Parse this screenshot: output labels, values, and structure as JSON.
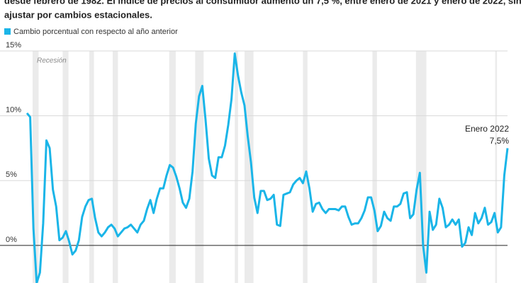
{
  "chart_data": {
    "type": "line",
    "subtitle": [
      "desde febrero de 1982. El índice de precios al consumidor aumentó un 7,5 %, entre enero de 2021 y enero de 2022, sin",
      "ajustar por cambios estacionales."
    ],
    "recession_label": "Recesión",
    "annotations": [
      "Enero 2022",
      "7,5%"
    ],
    "ylim": [
      -2.9,
      15
    ],
    "yticks": [
      {
        "value": 0,
        "label": "0%"
      },
      {
        "value": 5,
        "label": "5%"
      },
      {
        "value": 10,
        "label": "10%"
      },
      {
        "value": 15,
        "label": "15%"
      }
    ],
    "grid": true,
    "series": [
      {
        "name": "Cambio porcentual con respecto al año anterior",
        "color": "#1ab5e8",
        "values": [
          10.2,
          9.9,
          1.3,
          -2.9,
          -2.1,
          1.7,
          8.1,
          7.5,
          4.3,
          3.0,
          0.4,
          0.6,
          1.1,
          0.3,
          -0.7,
          -0.4,
          0.4,
          2.2,
          3.0,
          3.5,
          3.6,
          2.1,
          1.0,
          0.7,
          1.0,
          1.4,
          1.6,
          1.3,
          0.7,
          1.0,
          1.3,
          1.4,
          1.6,
          1.3,
          1.0,
          1.6,
          1.9,
          2.8,
          3.5,
          2.5,
          3.6,
          4.4,
          4.4,
          5.4,
          6.2,
          6.0,
          5.3,
          4.4,
          3.3,
          2.9,
          3.6,
          5.7,
          9.4,
          11.5,
          12.3,
          9.7,
          6.7,
          5.4,
          5.2,
          6.8,
          6.8,
          7.7,
          9.3,
          11.3,
          14.8,
          13.1,
          11.8,
          10.8,
          8.4,
          6.4,
          3.7,
          2.5,
          4.2,
          4.2,
          3.5,
          3.6,
          3.9,
          1.6,
          1.5,
          3.9,
          4.0,
          4.1,
          4.7,
          5.0,
          5.2,
          4.8,
          5.7,
          4.4,
          2.6,
          3.2,
          3.3,
          2.8,
          2.5,
          2.8,
          2.8,
          2.8,
          2.7,
          3.0,
          3.0,
          2.2,
          1.6,
          1.7,
          1.7,
          2.1,
          2.7,
          3.7,
          3.7,
          2.7,
          1.1,
          1.5,
          2.6,
          2.1,
          1.9,
          3.0,
          3.0,
          3.2,
          4.0,
          4.1,
          2.1,
          2.4,
          4.3,
          5.6,
          0.0,
          -2.1,
          2.6,
          1.2,
          1.6,
          3.6,
          2.9,
          1.4,
          1.6,
          2.0,
          1.6,
          2.0,
          -0.1,
          0.2,
          1.4,
          0.8,
          2.5,
          1.7,
          2.1,
          2.9,
          1.6,
          1.8,
          2.5,
          1.0,
          1.4,
          5.4,
          7.5
        ]
      }
    ]
  }
}
